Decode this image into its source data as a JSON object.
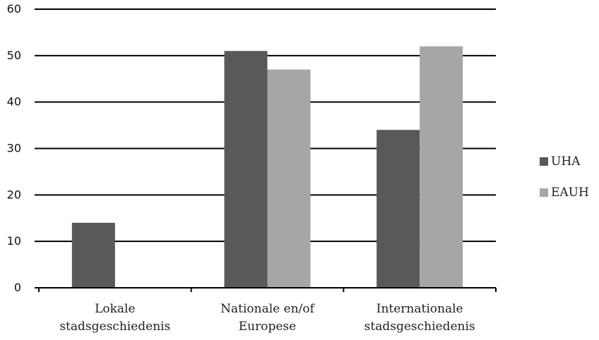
{
  "chart_data": {
    "type": "bar",
    "categories": [
      [
        "Lokale",
        "stadsgeschiedenis"
      ],
      [
        "Nationale en/of",
        "Europese"
      ],
      [
        "Internationale",
        "stadsgeschiedenis"
      ]
    ],
    "series": [
      {
        "name": "UHA",
        "color": "#595959",
        "values": [
          14,
          51,
          34
        ]
      },
      {
        "name": "EAUH",
        "color": "#a6a6a6",
        "values": [
          0,
          47,
          52
        ]
      }
    ],
    "ylim": [
      0,
      60
    ],
    "yticks": [
      "0",
      "10",
      "20",
      "30",
      "40",
      "50",
      "60"
    ],
    "grid": true,
    "legend": "right",
    "title": "",
    "xlabel": "",
    "ylabel": ""
  }
}
